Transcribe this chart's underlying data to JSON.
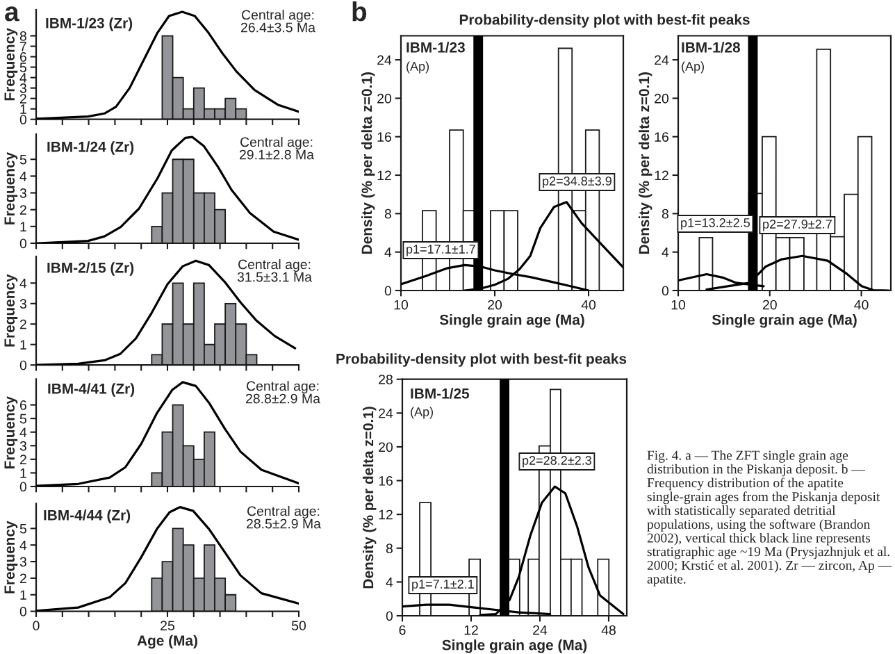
{
  "chart_data": [
    {
      "type": "histogram",
      "title": "IBM-1/23 (Zr)",
      "ylabel": "Frequency",
      "bins": [
        24,
        26,
        28,
        30,
        32,
        34,
        36,
        38,
        40
      ],
      "values": [
        8,
        4,
        1,
        3,
        1,
        1,
        2,
        1
      ],
      "color": "#939598",
      "series": [
        {
          "type": "line",
          "color": "#000000",
          "x": [
            0,
            1.1,
            9.9,
            13,
            15.2,
            17.8,
            20.5,
            23.1,
            25.3,
            27.8,
            30.2,
            32.8,
            35.5,
            38.1,
            41.6,
            46,
            50
          ],
          "values": [
            0.05,
            0.07,
            0.27,
            0.56,
            1.2,
            3.0,
            5.7,
            8.3,
            9.9,
            10.3,
            9.9,
            8.3,
            6.3,
            4.6,
            2.8,
            1.4,
            0.73
          ]
        }
      ],
      "xlim": [
        0,
        50
      ],
      "ylim": [
        0,
        10.5
      ],
      "yticks": [
        0,
        1,
        2,
        3,
        4,
        5,
        6,
        7,
        8
      ],
      "xticks": [
        {
          "value": 0,
          "label": null
        },
        {
          "value": 5,
          "label": null
        },
        {
          "value": 10,
          "label": null
        },
        {
          "value": 15,
          "label": null
        },
        {
          "value": 20,
          "label": null
        },
        {
          "value": 25,
          "label": null
        },
        {
          "value": 30,
          "label": null
        },
        {
          "value": 35,
          "label": null
        },
        {
          "value": 40,
          "label": null
        },
        {
          "value": 45,
          "label": null
        },
        {
          "value": 50,
          "label": null
        }
      ],
      "tick_labels": "y",
      "annotations": [
        "a",
        "Central age:\n26.4±3.5 Ma"
      ]
    },
    {
      "type": "histogram",
      "title": "IBM-1/24 (Zr)",
      "ylabel": "Frequency",
      "bins": [
        22,
        24,
        26,
        28,
        30,
        32,
        34,
        36
      ],
      "values": [
        1,
        3,
        5,
        5,
        3,
        3,
        2
      ],
      "color": "#939598",
      "series": [
        {
          "type": "line",
          "color": "#000000",
          "x": [
            0.2,
            9.9,
            13,
            16.1,
            19.6,
            23.1,
            25.8,
            28.4,
            29.7,
            31.9,
            34.6,
            37.2,
            40.7,
            45.2,
            50
          ],
          "values": [
            0,
            0.14,
            0.41,
            0.97,
            2.07,
            3.87,
            5.52,
            6.28,
            6.33,
            5.8,
            4.56,
            3.18,
            1.8,
            0.69,
            0.21
          ]
        }
      ],
      "xlim": [
        0,
        50
      ],
      "ylim": [
        0,
        6.5
      ],
      "yticks": [
        0,
        1,
        2,
        3,
        4,
        5
      ],
      "xticks": [
        {
          "value": 0,
          "label": null
        },
        {
          "value": 5,
          "label": null
        },
        {
          "value": 10,
          "label": null
        },
        {
          "value": 15,
          "label": null
        },
        {
          "value": 20,
          "label": null
        },
        {
          "value": 25,
          "label": null
        },
        {
          "value": 30,
          "label": null
        },
        {
          "value": 35,
          "label": null
        },
        {
          "value": 40,
          "label": null
        },
        {
          "value": 45,
          "label": null
        },
        {
          "value": 50,
          "label": null
        }
      ],
      "tick_labels": "y",
      "annotations": [
        "Central age:\n29.1±2.8 Ma"
      ]
    },
    {
      "type": "histogram",
      "title": "IBM-2/15 (Zr)",
      "ylabel": "Frequency",
      "bins": [
        22,
        24,
        26,
        28,
        30,
        32,
        34,
        36,
        38,
        40,
        42
      ],
      "values": [
        0.5,
        2,
        4,
        2,
        4,
        1,
        2,
        3,
        2,
        0.5
      ],
      "color": "#939598",
      "series": [
        {
          "type": "line",
          "color": "#000000",
          "x": [
            0,
            8,
            13,
            16,
            19,
            22,
            25,
            27.9,
            30.4,
            32.9,
            35.9,
            38.9,
            41.9,
            45.4,
            49.3
          ],
          "values": [
            0,
            0.06,
            0.23,
            0.54,
            1.3,
            2.55,
            3.94,
            4.82,
            5.09,
            4.88,
            4.06,
            3.06,
            2.18,
            1.42,
            0.82
          ]
        }
      ],
      "xlim": [
        0,
        50
      ],
      "ylim": [
        0,
        5.3
      ],
      "yticks": [
        0,
        1,
        2,
        3,
        4
      ],
      "xticks": [
        {
          "value": 0,
          "label": null
        },
        {
          "value": 5,
          "label": null
        },
        {
          "value": 10,
          "label": null
        },
        {
          "value": 15,
          "label": null
        },
        {
          "value": 20,
          "label": null
        },
        {
          "value": 25,
          "label": null
        },
        {
          "value": 30,
          "label": null
        },
        {
          "value": 35,
          "label": null
        },
        {
          "value": 40,
          "label": null
        },
        {
          "value": 45,
          "label": null
        },
        {
          "value": 50,
          "label": null
        }
      ],
      "tick_labels": "y",
      "annotations": [
        "Central age:\n31.5±3.1 Ma"
      ]
    },
    {
      "type": "histogram",
      "title": "IBM-4/41 (Zr)",
      "ylabel": "Frequency",
      "bins": [
        22,
        24,
        26,
        28,
        30,
        32,
        34
      ],
      "values": [
        1,
        4,
        6,
        3,
        2,
        4
      ],
      "color": "#939598",
      "series": [
        {
          "type": "line",
          "color": "#000000",
          "x": [
            0,
            8,
            14,
            17,
            20,
            23,
            25.9,
            27.9,
            30.4,
            32.9,
            35.9,
            38.9,
            42.9,
            50
          ],
          "values": [
            0.04,
            0.19,
            0.66,
            1.42,
            3.13,
            5.4,
            7.1,
            7.67,
            7.39,
            6.16,
            4.26,
            2.56,
            1.23,
            0.23
          ]
        }
      ],
      "xlim": [
        0,
        50
      ],
      "ylim": [
        0,
        7.9
      ],
      "yticks": [
        0,
        1,
        2,
        3,
        4,
        5,
        6
      ],
      "xticks": [
        {
          "value": 0,
          "label": null
        },
        {
          "value": 5,
          "label": null
        },
        {
          "value": 10,
          "label": null
        },
        {
          "value": 15,
          "label": null
        },
        {
          "value": 20,
          "label": null
        },
        {
          "value": 25,
          "label": null
        },
        {
          "value": 30,
          "label": null
        },
        {
          "value": 35,
          "label": null
        },
        {
          "value": 40,
          "label": null
        },
        {
          "value": 45,
          "label": null
        },
        {
          "value": 50,
          "label": null
        }
      ],
      "tick_labels": "y",
      "annotations": [
        "Central age:\n28.8±2.9 Ma"
      ]
    },
    {
      "type": "histogram",
      "title": "IBM-4/44 (Zr)",
      "ylabel": "Frequency",
      "xlabel": "Age (Ma)",
      "bins": [
        22,
        24,
        26,
        28,
        30,
        32,
        34,
        36,
        38
      ],
      "values": [
        2,
        3,
        5,
        4,
        2,
        4,
        2,
        1
      ],
      "color": "#939598",
      "series": [
        {
          "type": "line",
          "color": "#000000",
          "x": [
            0,
            8,
            14,
            17,
            20,
            23,
            25.4,
            27.4,
            29.9,
            32.9,
            35.9,
            38.9,
            42.9,
            50
          ],
          "values": [
            0.03,
            0.23,
            0.85,
            1.71,
            3.26,
            4.97,
            5.98,
            6.29,
            6.06,
            4.97,
            3.57,
            2.17,
            1.09,
            0.47
          ]
        }
      ],
      "xlim": [
        0,
        50
      ],
      "ylim": [
        0,
        6.5
      ],
      "yticks": [
        0,
        1,
        2,
        3,
        4,
        5
      ],
      "xticks": [
        0,
        {
          "value": 5,
          "label": null
        },
        {
          "value": 10,
          "label": null
        },
        {
          "value": 15,
          "label": null
        },
        {
          "value": 20,
          "label": null
        },
        25,
        {
          "value": 30,
          "label": null
        },
        {
          "value": 35,
          "label": null
        },
        {
          "value": 40,
          "label": null
        },
        {
          "value": 45,
          "label": null
        },
        50
      ],
      "annotations": [
        "Central age:\n28.5±2.9 Ma"
      ]
    },
    {
      "type": "histogram",
      "title": "IBM-1/23",
      "subtitle": "(Ap)",
      "xlabel": "Single grain age (Ma)",
      "ylabel": "Density (% per delta z=0.1)",
      "log": "x",
      "bins": [
        11.72,
        12.97,
        14.33,
        15.85,
        17.53,
        19.38,
        21.43,
        23.69,
        26.19,
        28.96,
        32.02,
        35.4,
        39.14,
        43.28
      ],
      "values": [
        8.3,
        null,
        16.7,
        8.3,
        null,
        8.3,
        8.3,
        null,
        null,
        null,
        25.2,
        8.3,
        16.7
      ],
      "color": "#ffffff",
      "series": [
        {
          "type": "line",
          "color": "#000000",
          "x": [
            10,
            12,
            14,
            16,
            18,
            20,
            23,
            26,
            30,
            35,
            40
          ],
          "values": [
            0.65,
            1.5,
            2.3,
            2.65,
            2.5,
            2.1,
            1.7,
            1.4,
            0.95,
            0.45,
            0
          ]
        },
        {
          "type": "line",
          "color": "#000000",
          "x": [
            16,
            18,
            20,
            22,
            24,
            26,
            28,
            31,
            34,
            38,
            44,
            51.7
          ],
          "values": [
            0,
            0.2,
            0.6,
            1.2,
            2.2,
            3.6,
            6.5,
            8.7,
            9.2,
            7.0,
            4.8,
            2.4
          ]
        }
      ],
      "ref_lines": [
        {
          "axis": "x",
          "value": 17.7,
          "color": "#000000"
        }
      ],
      "xlim": [
        10,
        51.7
      ],
      "ylim": [
        0,
        26.5
      ],
      "xticks": [
        10,
        20,
        40
      ],
      "yticks": [
        0,
        4,
        8,
        12,
        16,
        20,
        24
      ],
      "annotations": [
        "b",
        "Probability-density plot with best-fit peaks",
        "p1=17.1±1.7",
        "p2=34.8±3.9"
      ]
    },
    {
      "type": "histogram",
      "title": "IBM-1/28",
      "subtitle": "(Ap)",
      "xlabel": "Single grain age (Ma)",
      "ylabel": "Density (% per delta z=0.1)",
      "log": "x",
      "bins": [
        11.73,
        12.97,
        17.08,
        18.89,
        20.96,
        23.26,
        25.9,
        28.54,
        31.67,
        35.15,
        39.0,
        43.27
      ],
      "values": [
        5.5,
        null,
        10.1,
        16,
        5.5,
        5.5,
        null,
        25.1,
        5.6,
        10,
        16
      ],
      "color": "#ffffff",
      "series": [
        {
          "type": "line",
          "color": "#000000",
          "x": [
            10,
            12.4,
            14,
            15.5,
            19.1
          ],
          "values": [
            1.05,
            1.7,
            1.35,
            0.8,
            0.44
          ]
        },
        {
          "type": "line",
          "color": "#000000",
          "x": [
            12.4,
            17.2,
            19.4,
            21.9,
            25.6,
            31.0,
            35.6,
            40.1,
            43.8,
            49.3
          ],
          "values": [
            0.1,
            0.8,
            2.5,
            3.25,
            3.6,
            3.1,
            1.8,
            0.45,
            0.03,
            0
          ]
        }
      ],
      "ref_lines": [
        {
          "axis": "x",
          "value": 17.6,
          "color": "#000000"
        }
      ],
      "xlim": [
        10,
        50
      ],
      "ylim": [
        0,
        26.5
      ],
      "xticks": [
        10,
        20,
        40
      ],
      "yticks": [
        0,
        4,
        8,
        12,
        16,
        20,
        24
      ],
      "annotations": [
        "p1=13.2±2.5",
        "p2=27.9±2.7"
      ]
    },
    {
      "type": "histogram",
      "title": "IBM-1/25",
      "subtitle": "(Ap)",
      "xlabel": "Single grain age (Ma)",
      "ylabel": "Density (% per delta z=0.1)",
      "log": "x",
      "bins": [
        7.15,
        8.0,
        11.76,
        13.15,
        17.49,
        19.57,
        21.34,
        23.81,
        26.64,
        29.59,
        32.87,
        36.68,
        43.0,
        48.1
      ],
      "values": [
        13.4,
        null,
        6.7,
        null,
        6.7,
        null,
        6.7,
        20.1,
        26.8,
        6.7,
        6.7,
        null,
        6.7
      ],
      "color": "#ffffff",
      "series": [
        {
          "type": "line",
          "color": "#000000",
          "x": [
            6,
            7.63,
            9.63,
            12.2,
            15.4,
            19.4,
            26.6
          ],
          "values": [
            1.1,
            1.3,
            1.3,
            1.0,
            0.7,
            0.4,
            0.2
          ]
        },
        {
          "type": "line",
          "color": "#000000",
          "x": [
            13.15,
            15.4,
            17.7,
            19.4,
            21.8,
            24.5,
            27.9,
            31.0,
            34.9,
            39.2,
            44.0,
            55.6
          ],
          "values": [
            0.1,
            0.2,
            1.9,
            4.6,
            9.5,
            13.4,
            15.3,
            14.5,
            10.6,
            5.7,
            2.4,
            0.2
          ]
        }
      ],
      "ref_lines": [
        {
          "axis": "x",
          "value": 16.8,
          "color": "#000000"
        }
      ],
      "xlim": [
        6,
        57.6
      ],
      "ylim": [
        0,
        28
      ],
      "xticks": [
        6,
        12,
        24,
        48
      ],
      "yticks": [
        0,
        4,
        8,
        12,
        16,
        20,
        24,
        28
      ],
      "annotations": [
        "Probability-density plot with best-fit peaks",
        "p1=7.1±2.1",
        "p2=28.2±2.3",
        "Fig. 4. a — The ZFT single grain age distribution in the Piskanja deposit. b — Frequency distribution of the apatite single-grain ages from the Piskanja deposit with statistically separated detritial populations, using the software (Brandon 2002), vertical thick black line represents stratigraphic age ~19 Ma (Prysjazhnjuk et al. 2000; Krstić et al. 2001). Zr — zircon, Ap — apatite."
      ]
    }
  ]
}
